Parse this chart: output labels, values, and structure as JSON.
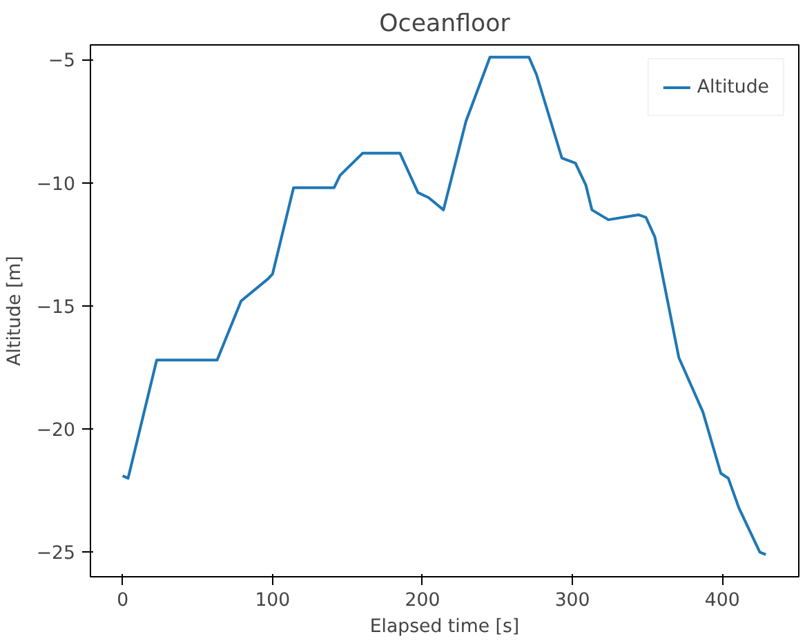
{
  "chart_data": {
    "type": "line",
    "title": "Oceanfloor",
    "xlabel": "Elapsed time [s]",
    "ylabel": "Altitude [m]",
    "x": [
      0,
      3.6,
      22.7,
      63,
      79,
      97,
      100,
      114,
      141,
      145,
      160,
      185,
      197,
      204,
      214,
      229,
      245,
      271,
      276,
      293,
      302,
      309,
      313,
      324,
      344,
      349,
      355,
      371,
      387,
      399,
      404,
      411,
      425,
      429
    ],
    "series": [
      {
        "name": "Altitude",
        "color": "#1f77b4",
        "values": [
          -21.9,
          -22.0,
          -17.2,
          -17.2,
          -14.8,
          -13.9,
          -13.7,
          -10.2,
          -10.2,
          -9.7,
          -8.8,
          -8.8,
          -10.4,
          -10.6,
          -11.1,
          -7.5,
          -4.9,
          -4.9,
          -5.6,
          -9.0,
          -9.2,
          -10.1,
          -11.1,
          -11.5,
          -11.3,
          -11.4,
          -12.2,
          -17.1,
          -19.3,
          -21.8,
          -22.0,
          -23.2,
          -25.0,
          -25.1
        ]
      }
    ],
    "xlim": [
      -21.5,
      451
    ],
    "ylim": [
      -26.0,
      -4.4
    ],
    "xticks": [
      0,
      100,
      200,
      300,
      400
    ],
    "yticks": [
      {
        "value": -25,
        "label": "−25"
      },
      {
        "value": -20,
        "label": "−20"
      },
      {
        "value": -15,
        "label": "−15"
      },
      {
        "value": -10,
        "label": "−10"
      },
      {
        "value": -5,
        "label": "−5"
      }
    ],
    "grid": false,
    "legend": "top right",
    "line_style": "solid",
    "marker": "none"
  }
}
